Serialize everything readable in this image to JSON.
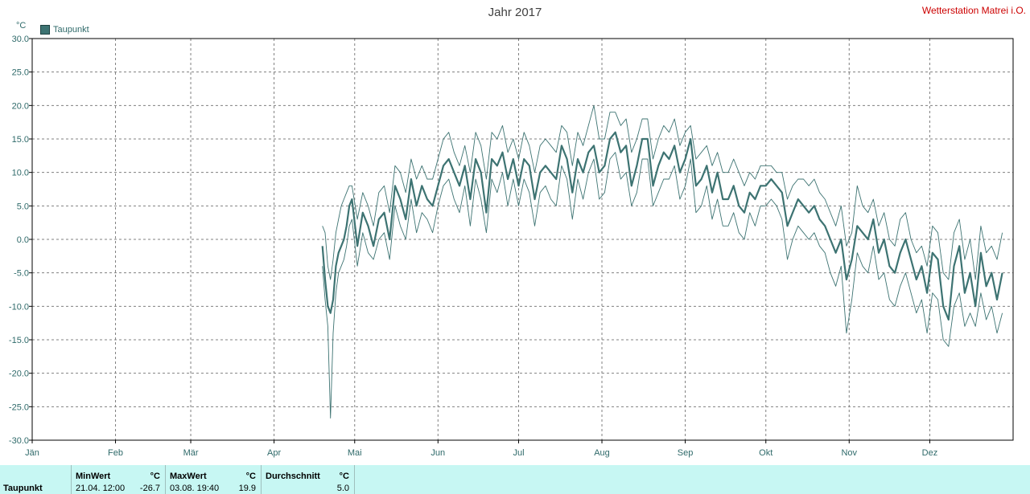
{
  "header": {
    "title": "Jahr 2017",
    "station": "Wetterstation Matrei i.O.",
    "unit": "°C",
    "legend_label": "Taupunkt"
  },
  "stats": {
    "row_label": "Taupunkt",
    "min_header": "MinWert",
    "min_unit": "°C",
    "min_time": "21.04.  12:00",
    "min_value": "-26.7",
    "max_header": "MaxWert",
    "max_unit": "°C",
    "max_time": "03.08.  19:40",
    "max_value": "19.9",
    "avg_header": "Durchschnitt",
    "avg_unit": "°C",
    "avg_value": "5.0"
  },
  "colors": {
    "series": "#3d7372",
    "axis_text": "#2f6a6a",
    "grid": "#808080",
    "station": "#cc0000",
    "stats_bg": "#c7f7f3"
  },
  "chart_data": {
    "type": "line",
    "title": "Jahr 2017",
    "xlabel": "",
    "ylabel": "°C",
    "ylim": [
      -30,
      30
    ],
    "yticks": [
      "30.0",
      "25.0",
      "20.0",
      "15.0",
      "10.0",
      "5.0",
      "0.0",
      "-5.0",
      "-10.0",
      "-15.0",
      "-20.0",
      "-25.0",
      "-30.0"
    ],
    "xticks": [
      "Jän",
      "Feb",
      "Mär",
      "Apr",
      "Mai",
      "Jun",
      "Jul",
      "Aug",
      "Sep",
      "Okt",
      "Nov",
      "Dez"
    ],
    "grid": true,
    "legend": "top-left",
    "series": [
      {
        "name": "Taupunkt",
        "role": "mean",
        "x_day_of_year": [
          109,
          110,
          111,
          112,
          113,
          114,
          115,
          116,
          117,
          118,
          119,
          120,
          122,
          124,
          126,
          128,
          130,
          132,
          134,
          136,
          138,
          140,
          142,
          144,
          146,
          148,
          150,
          152,
          154,
          156,
          158,
          160,
          162,
          164,
          166,
          168,
          170,
          172,
          174,
          176,
          178,
          180,
          182,
          184,
          186,
          188,
          190,
          192,
          194,
          196,
          198,
          200,
          202,
          204,
          206,
          208,
          210,
          212,
          214,
          216,
          218,
          220,
          222,
          224,
          226,
          228,
          230,
          232,
          234,
          236,
          238,
          240,
          242,
          244,
          246,
          248,
          250,
          252,
          254,
          256,
          258,
          260,
          262,
          264,
          266,
          268,
          270,
          272,
          274,
          276,
          278,
          280,
          282,
          284,
          286,
          288,
          290,
          292,
          294,
          296,
          298,
          300,
          302,
          304,
          306,
          308,
          310,
          312,
          314,
          316,
          318,
          320,
          322,
          324,
          326,
          328,
          330,
          332,
          334,
          336,
          338,
          340,
          342,
          344,
          346,
          348,
          350,
          352,
          354,
          356,
          358,
          360,
          362,
          364
        ],
        "values": [
          -1,
          -6,
          -10,
          -11,
          -9,
          -4,
          -2,
          -1,
          0,
          2,
          5,
          6,
          -1,
          4,
          2,
          -1,
          3,
          4,
          0,
          8,
          6,
          3,
          9,
          5,
          8,
          6,
          5,
          8,
          11,
          12,
          10,
          8,
          11,
          6,
          12,
          10,
          4,
          12,
          11,
          13,
          9,
          12,
          8,
          12,
          11,
          6,
          10,
          11,
          10,
          9,
          14,
          12,
          7,
          12,
          10,
          13,
          14,
          10,
          11,
          15,
          16,
          13,
          14,
          8,
          11,
          15,
          15,
          8,
          11,
          13,
          12,
          14,
          10,
          12,
          15,
          8,
          9,
          11,
          7,
          10,
          6,
          6,
          8,
          5,
          4,
          7,
          6,
          8,
          8,
          9,
          8,
          7,
          2,
          4,
          6,
          5,
          4,
          5,
          3,
          2,
          0,
          -2,
          0,
          -6,
          -3,
          2,
          1,
          0,
          3,
          -2,
          0,
          -4,
          -5,
          -2,
          0,
          -3,
          -6,
          -4,
          -8,
          -2,
          -3,
          -10,
          -12,
          -4,
          -1,
          -8,
          -5,
          -10,
          -2,
          -7,
          -5,
          -9,
          -5
        ]
      },
      {
        "name": "Taupunkt",
        "role": "max",
        "x_day_of_year": [
          109,
          110,
          111,
          112,
          113,
          114,
          115,
          116,
          117,
          118,
          119,
          120,
          122,
          124,
          126,
          128,
          130,
          132,
          134,
          136,
          138,
          140,
          142,
          144,
          146,
          148,
          150,
          152,
          154,
          156,
          158,
          160,
          162,
          164,
          166,
          168,
          170,
          172,
          174,
          176,
          178,
          180,
          182,
          184,
          186,
          188,
          190,
          192,
          194,
          196,
          198,
          200,
          202,
          204,
          206,
          208,
          210,
          212,
          214,
          216,
          218,
          220,
          222,
          224,
          226,
          228,
          230,
          232,
          234,
          236,
          238,
          240,
          242,
          244,
          246,
          248,
          250,
          252,
          254,
          256,
          258,
          260,
          262,
          264,
          266,
          268,
          270,
          272,
          274,
          276,
          278,
          280,
          282,
          284,
          286,
          288,
          290,
          292,
          294,
          296,
          298,
          300,
          302,
          304,
          306,
          308,
          310,
          312,
          314,
          316,
          318,
          320,
          322,
          324,
          326,
          328,
          330,
          332,
          334,
          336,
          338,
          340,
          342,
          344,
          346,
          348,
          350,
          352,
          354,
          356,
          358,
          360,
          362,
          364
        ],
        "values": [
          2,
          1,
          -4,
          -6,
          -3,
          1,
          3,
          5,
          6,
          7,
          8,
          8,
          3,
          7,
          5,
          2,
          7,
          8,
          4,
          11,
          10,
          7,
          12,
          9,
          11,
          9,
          9,
          12,
          15,
          16,
          13,
          11,
          14,
          10,
          16,
          14,
          9,
          16,
          15,
          17,
          13,
          15,
          12,
          16,
          14,
          10,
          14,
          15,
          14,
          13,
          17,
          16,
          11,
          16,
          14,
          17,
          20,
          15,
          15,
          19,
          19,
          17,
          18,
          13,
          15,
          18,
          18,
          12,
          15,
          17,
          16,
          18,
          14,
          16,
          17,
          12,
          13,
          14,
          11,
          13,
          10,
          10,
          12,
          10,
          8,
          10,
          9,
          11,
          11,
          11,
          10,
          10,
          6,
          8,
          9,
          9,
          8,
          9,
          7,
          6,
          4,
          2,
          5,
          -1,
          1,
          8,
          5,
          4,
          6,
          2,
          4,
          0,
          -1,
          3,
          4,
          0,
          -2,
          -1,
          -4,
          2,
          1,
          -5,
          -6,
          1,
          3,
          -3,
          0,
          -6,
          2,
          -2,
          -1,
          -3,
          1
        ]
      },
      {
        "name": "Taupunkt",
        "role": "min",
        "x_day_of_year": [
          109,
          110,
          111,
          112,
          113,
          114,
          115,
          116,
          117,
          118,
          119,
          120,
          122,
          124,
          126,
          128,
          130,
          132,
          134,
          136,
          138,
          140,
          142,
          144,
          146,
          148,
          150,
          152,
          154,
          156,
          158,
          160,
          162,
          164,
          166,
          168,
          170,
          172,
          174,
          176,
          178,
          180,
          182,
          184,
          186,
          188,
          190,
          192,
          194,
          196,
          198,
          200,
          202,
          204,
          206,
          208,
          210,
          212,
          214,
          216,
          218,
          220,
          222,
          224,
          226,
          228,
          230,
          232,
          234,
          236,
          238,
          240,
          242,
          244,
          246,
          248,
          250,
          252,
          254,
          256,
          258,
          260,
          262,
          264,
          266,
          268,
          270,
          272,
          274,
          276,
          278,
          280,
          282,
          284,
          286,
          288,
          290,
          292,
          294,
          296,
          298,
          300,
          302,
          304,
          306,
          308,
          310,
          312,
          314,
          316,
          318,
          320,
          322,
          324,
          326,
          328,
          330,
          332,
          334,
          336,
          338,
          340,
          342,
          344,
          346,
          348,
          350,
          352,
          354,
          356,
          358,
          360,
          362,
          364
        ],
        "values": [
          -4,
          -9,
          -13,
          -26.7,
          -14,
          -8,
          -5,
          -4,
          -3,
          -1,
          2,
          3,
          -4,
          1,
          -2,
          -3,
          0,
          1,
          -3,
          5,
          2,
          0,
          6,
          1,
          4,
          3,
          1,
          5,
          8,
          9,
          6,
          4,
          8,
          2,
          9,
          6,
          1,
          9,
          7,
          10,
          5,
          9,
          5,
          9,
          7,
          2,
          7,
          8,
          6,
          5,
          11,
          9,
          3,
          9,
          6,
          10,
          12,
          6,
          7,
          12,
          13,
          9,
          10,
          5,
          7,
          12,
          12,
          5,
          7,
          9,
          9,
          11,
          6,
          8,
          12,
          4,
          5,
          8,
          3,
          6,
          2,
          2,
          4,
          1,
          0,
          4,
          2,
          5,
          5,
          6,
          5,
          3,
          -3,
          0,
          2,
          1,
          0,
          1,
          -1,
          -2,
          -5,
          -7,
          -4,
          -14,
          -9,
          -2,
          -4,
          -5,
          -1,
          -6,
          -5,
          -9,
          -10,
          -7,
          -5,
          -8,
          -11,
          -9,
          -14,
          -8,
          -9,
          -15,
          -16,
          -10,
          -8,
          -13,
          -11,
          -13,
          -8,
          -12,
          -10,
          -14,
          -11
        ]
      }
    ]
  }
}
